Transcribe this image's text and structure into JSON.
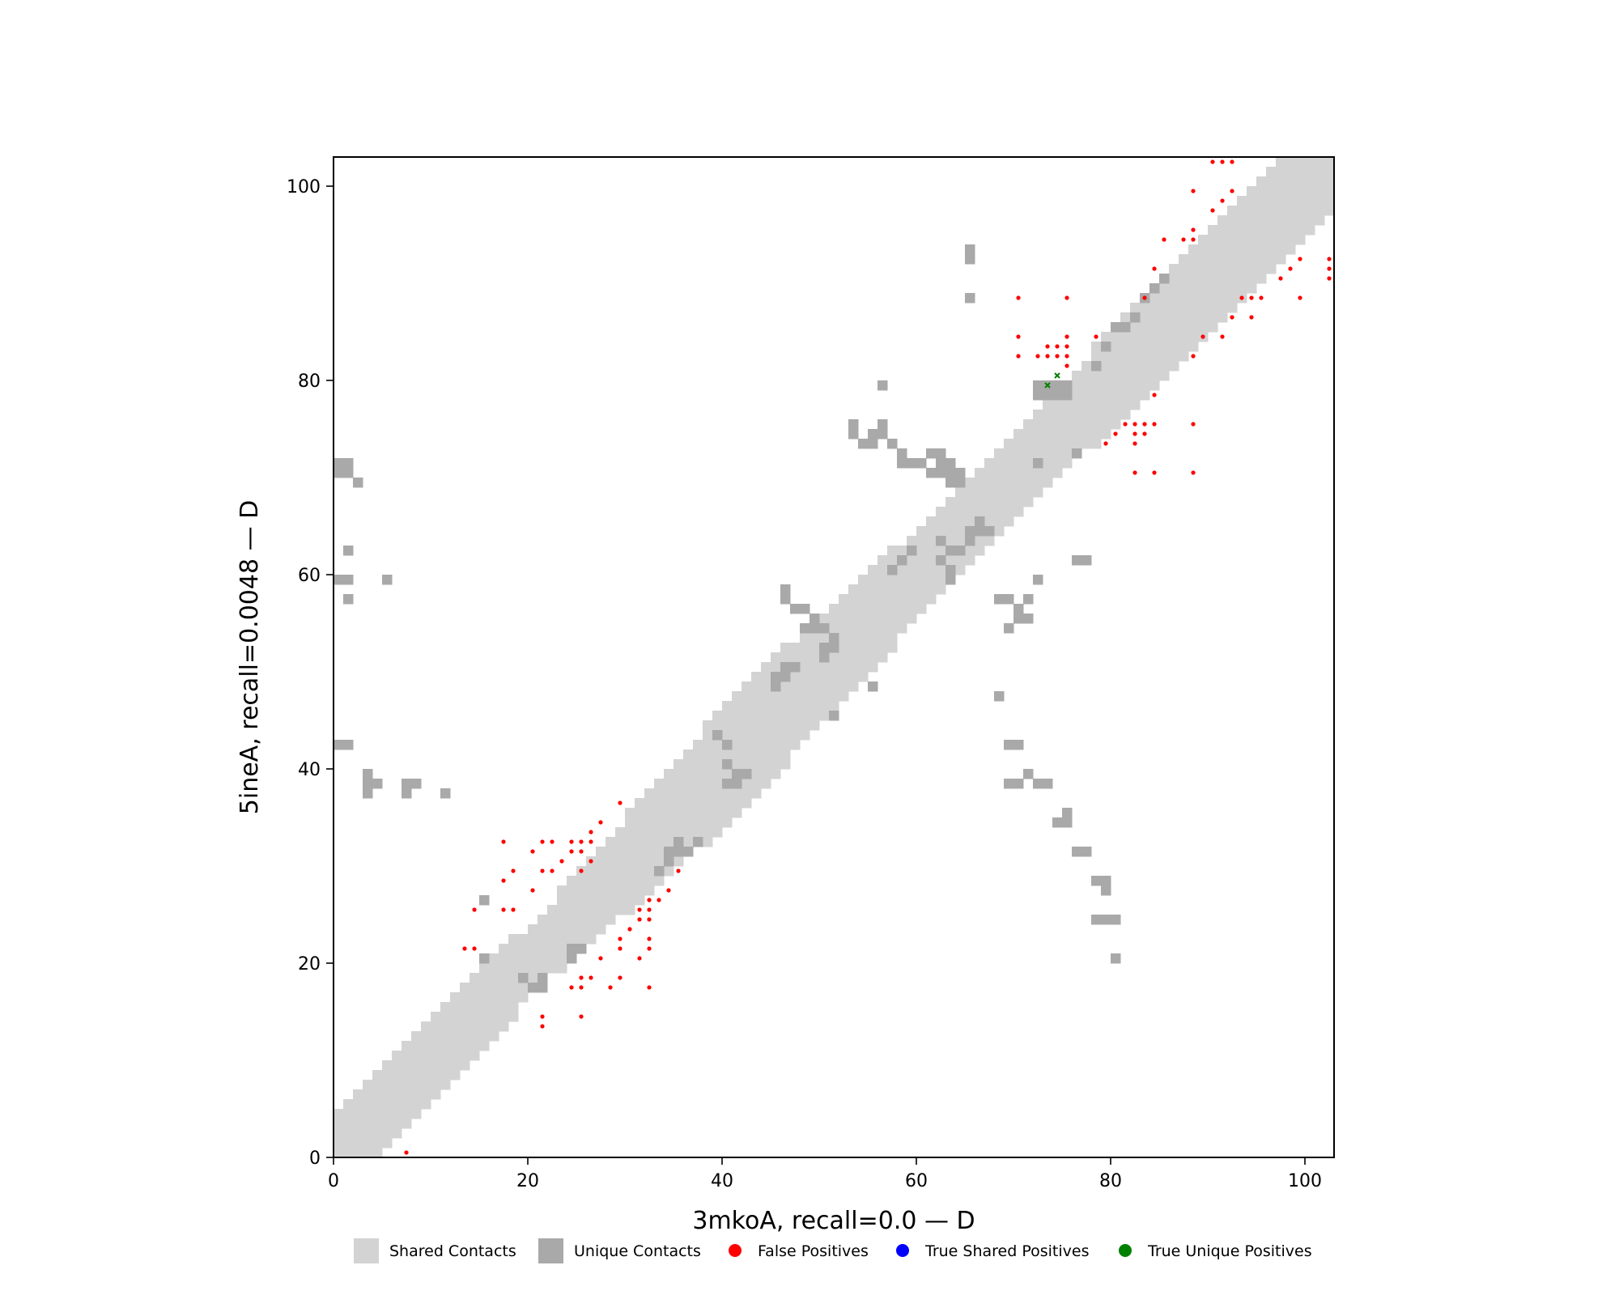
{
  "chart_data": {
    "type": "contact-map",
    "title": "",
    "xlabel": "3mkoA, recall=0.0 — D",
    "ylabel": "5ineA, recall=0.0048 — D",
    "xlim": [
      0,
      103
    ],
    "ylim": [
      0,
      103
    ],
    "xticks": [
      "0",
      "20",
      "40",
      "60",
      "80",
      "100"
    ],
    "yticks": [
      "0",
      "20",
      "40",
      "60",
      "80",
      "100"
    ],
    "grid": false,
    "legend_position": "bottom-center",
    "colors": {
      "shared": "#d3d3d3",
      "unique": "#a9a9a9",
      "false_positive": "#ff0000",
      "true_shared_positive": "#0000ff",
      "true_unique_positive": "#008000"
    },
    "legend": [
      {
        "label": "Shared Contacts",
        "marker": "square",
        "color": "#d3d3d3"
      },
      {
        "label": "Unique Contacts",
        "marker": "square",
        "color": "#a9a9a9"
      },
      {
        "label": "False Positives",
        "marker": "circle",
        "color": "#ff0000"
      },
      {
        "label": "True Shared Positives",
        "marker": "circle",
        "color": "#0000ff"
      },
      {
        "label": "True Unique Positives",
        "marker": "circle",
        "color": "#008000"
      }
    ],
    "shared_band": {
      "segments": [
        {
          "from": 0,
          "to": 19,
          "half_width": 4
        },
        {
          "from": 19,
          "to": 23,
          "half_width": 3
        },
        {
          "from": 23,
          "to": 30,
          "half_width": 4
        },
        {
          "from": 30,
          "to": 38,
          "half_width": 5
        },
        {
          "from": 38,
          "to": 47,
          "half_width": 6
        },
        {
          "from": 47,
          "to": 58,
          "half_width": 5
        },
        {
          "from": 58,
          "to": 68,
          "half_width": 4
        },
        {
          "from": 68,
          "to": 78,
          "half_width": 4
        },
        {
          "from": 78,
          "to": 103,
          "half_width": 5
        }
      ]
    },
    "unique_contacts": [
      [
        0,
        70
      ],
      [
        0,
        71
      ],
      [
        1,
        70
      ],
      [
        1,
        71
      ],
      [
        2,
        69
      ],
      [
        1,
        42
      ],
      [
        0,
        42
      ],
      [
        1,
        62
      ],
      [
        1,
        59
      ],
      [
        0,
        59
      ],
      [
        5,
        59
      ],
      [
        1,
        57
      ],
      [
        3,
        38
      ],
      [
        3,
        39
      ],
      [
        3,
        37
      ],
      [
        4,
        38
      ],
      [
        7,
        37
      ],
      [
        7,
        38
      ],
      [
        8,
        38
      ],
      [
        11,
        37
      ],
      [
        15,
        20
      ],
      [
        15,
        26
      ],
      [
        19,
        18
      ],
      [
        20,
        17
      ],
      [
        21,
        17
      ],
      [
        21,
        18
      ],
      [
        24,
        21
      ],
      [
        24,
        20
      ],
      [
        25,
        21
      ],
      [
        33,
        29
      ],
      [
        34,
        30
      ],
      [
        34,
        31
      ],
      [
        35,
        31
      ],
      [
        35,
        32
      ],
      [
        36,
        31
      ],
      [
        37,
        32
      ],
      [
        39,
        43
      ],
      [
        40,
        42
      ],
      [
        40,
        40
      ],
      [
        40,
        38
      ],
      [
        41,
        39
      ],
      [
        41,
        38
      ],
      [
        42,
        39
      ],
      [
        45,
        48
      ],
      [
        45,
        49
      ],
      [
        46,
        49
      ],
      [
        46,
        50
      ],
      [
        47,
        50
      ],
      [
        46,
        58
      ],
      [
        46,
        57
      ],
      [
        47,
        56
      ],
      [
        48,
        56
      ],
      [
        48,
        54
      ],
      [
        49,
        55
      ],
      [
        49,
        54
      ],
      [
        50,
        54
      ],
      [
        50,
        52
      ],
      [
        50,
        51
      ],
      [
        51,
        52
      ],
      [
        51,
        53
      ],
      [
        51,
        45
      ],
      [
        55,
        48
      ],
      [
        53,
        75
      ],
      [
        53,
        74
      ],
      [
        54,
        73
      ],
      [
        55,
        73
      ],
      [
        55,
        74
      ],
      [
        56,
        75
      ],
      [
        56,
        74
      ],
      [
        56,
        79
      ],
      [
        57,
        73
      ],
      [
        58,
        72
      ],
      [
        58,
        71
      ],
      [
        59,
        71
      ],
      [
        60,
        71
      ],
      [
        61,
        72
      ],
      [
        61,
        70
      ],
      [
        62,
        71
      ],
      [
        62,
        72
      ],
      [
        62,
        70
      ],
      [
        63,
        71
      ],
      [
        63,
        70
      ],
      [
        63,
        69
      ],
      [
        64,
        69
      ],
      [
        64,
        70
      ],
      [
        65,
        88
      ],
      [
        65,
        92
      ],
      [
        65,
        93
      ],
      [
        57,
        60
      ],
      [
        58,
        61
      ],
      [
        59,
        62
      ],
      [
        62,
        63
      ],
      [
        62,
        61
      ],
      [
        63,
        62
      ],
      [
        63,
        60
      ],
      [
        63,
        59
      ],
      [
        64,
        62
      ],
      [
        65,
        63
      ],
      [
        65,
        64
      ],
      [
        66,
        64
      ],
      [
        66,
        65
      ],
      [
        67,
        64
      ],
      [
        68,
        57
      ],
      [
        69,
        57
      ],
      [
        69,
        54
      ],
      [
        70,
        55
      ],
      [
        70,
        56
      ],
      [
        71,
        55
      ],
      [
        72,
        59
      ],
      [
        71,
        57
      ],
      [
        68,
        47
      ],
      [
        69,
        42
      ],
      [
        70,
        42
      ],
      [
        69,
        38
      ],
      [
        70,
        38
      ],
      [
        71,
        39
      ],
      [
        72,
        38
      ],
      [
        73,
        38
      ],
      [
        74,
        34
      ],
      [
        75,
        35
      ],
      [
        75,
        34
      ],
      [
        76,
        31
      ],
      [
        77,
        31
      ],
      [
        78,
        28
      ],
      [
        79,
        28
      ],
      [
        79,
        27
      ],
      [
        78,
        24
      ],
      [
        79,
        24
      ],
      [
        80,
        24
      ],
      [
        80,
        20
      ],
      [
        72,
        78
      ],
      [
        73,
        78
      ],
      [
        74,
        78
      ],
      [
        75,
        78
      ],
      [
        72,
        79
      ],
      [
        73,
        79
      ],
      [
        74,
        79
      ],
      [
        75,
        79
      ],
      [
        72,
        71
      ],
      [
        76,
        72
      ],
      [
        78,
        81
      ],
      [
        79,
        83
      ],
      [
        80,
        85
      ],
      [
        81,
        85
      ],
      [
        82,
        86
      ],
      [
        83,
        88
      ],
      [
        84,
        89
      ],
      [
        85,
        90
      ],
      [
        77,
        61
      ],
      [
        76,
        61
      ]
    ],
    "false_positives": [
      [
        7,
        0
      ],
      [
        13,
        21
      ],
      [
        14,
        21
      ],
      [
        14,
        25
      ],
      [
        17,
        32
      ],
      [
        17,
        28
      ],
      [
        17,
        25
      ],
      [
        18,
        25
      ],
      [
        18,
        29
      ],
      [
        20,
        27
      ],
      [
        20,
        31
      ],
      [
        21,
        32
      ],
      [
        22,
        32
      ],
      [
        21,
        29
      ],
      [
        22,
        29
      ],
      [
        23,
        30
      ],
      [
        24,
        31
      ],
      [
        24,
        32
      ],
      [
        25,
        32
      ],
      [
        25,
        31
      ],
      [
        26,
        32
      ],
      [
        26,
        33
      ],
      [
        27,
        34
      ],
      [
        25,
        29
      ],
      [
        26,
        30
      ],
      [
        29,
        36
      ],
      [
        21,
        14
      ],
      [
        21,
        13
      ],
      [
        24,
        17
      ],
      [
        25,
        17
      ],
      [
        25,
        18
      ],
      [
        26,
        18
      ],
      [
        25,
        14
      ],
      [
        27,
        20
      ],
      [
        28,
        17
      ],
      [
        29,
        21
      ],
      [
        29,
        22
      ],
      [
        29,
        18
      ],
      [
        30,
        23
      ],
      [
        31,
        24
      ],
      [
        31,
        25
      ],
      [
        32,
        25
      ],
      [
        32,
        24
      ],
      [
        32,
        26
      ],
      [
        33,
        26
      ],
      [
        32,
        22
      ],
      [
        32,
        21
      ],
      [
        31,
        20
      ],
      [
        32,
        17
      ],
      [
        34,
        27
      ],
      [
        35,
        29
      ],
      [
        70,
        88
      ],
      [
        70,
        84
      ],
      [
        70,
        82
      ],
      [
        72,
        82
      ],
      [
        73,
        82
      ],
      [
        73,
        83
      ],
      [
        74,
        82
      ],
      [
        74,
        83
      ],
      [
        75,
        84
      ],
      [
        75,
        83
      ],
      [
        75,
        82
      ],
      [
        75,
        81
      ],
      [
        75,
        88
      ],
      [
        78,
        84
      ],
      [
        80,
        74
      ],
      [
        81,
        75
      ],
      [
        82,
        75
      ],
      [
        82,
        74
      ],
      [
        82,
        73
      ],
      [
        83,
        74
      ],
      [
        83,
        75
      ],
      [
        84,
        75
      ],
      [
        84,
        78
      ],
      [
        88,
        75
      ],
      [
        79,
        73
      ],
      [
        82,
        70
      ],
      [
        84,
        70
      ],
      [
        88,
        70
      ],
      [
        83,
        88
      ],
      [
        84,
        91
      ],
      [
        85,
        94
      ],
      [
        87,
        94
      ],
      [
        88,
        95
      ],
      [
        88,
        94
      ],
      [
        90,
        97
      ],
      [
        91,
        98
      ],
      [
        92,
        99
      ],
      [
        88,
        99
      ],
      [
        90,
        102
      ],
      [
        91,
        102
      ],
      [
        92,
        102
      ],
      [
        88,
        82
      ],
      [
        89,
        84
      ],
      [
        91,
        84
      ],
      [
        92,
        86
      ],
      [
        93,
        88
      ],
      [
        94,
        88
      ],
      [
        95,
        88
      ],
      [
        94,
        86
      ],
      [
        97,
        90
      ],
      [
        98,
        91
      ],
      [
        99,
        92
      ],
      [
        99,
        88
      ],
      [
        102,
        92
      ],
      [
        102,
        91
      ],
      [
        102,
        90
      ]
    ],
    "true_shared_positives": [],
    "true_unique_positives": [
      [
        73,
        79
      ],
      [
        74,
        80
      ]
    ]
  }
}
